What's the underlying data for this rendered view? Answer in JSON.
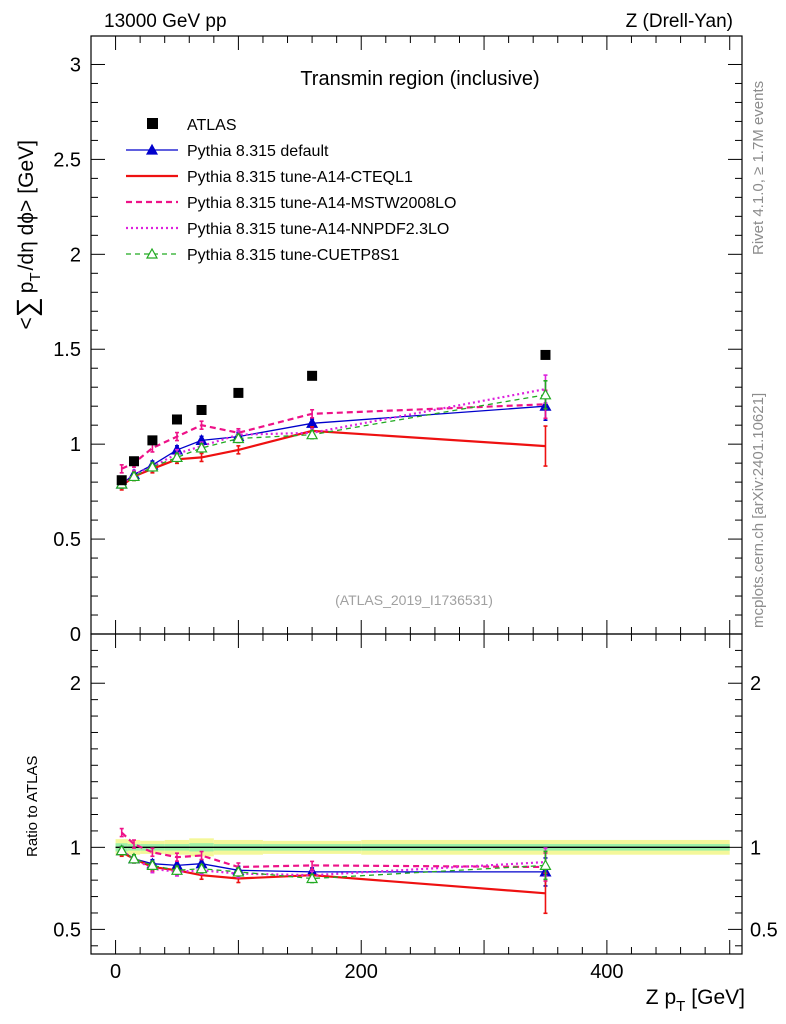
{
  "header": {
    "left": "13000 GeV pp",
    "right": "Z (Drell-Yan)"
  },
  "side_labels": {
    "rivet": "Rivet 4.1.0, ≥ 1.7M events",
    "site": "mcplots.cern.ch [arXiv:2401.10621]"
  },
  "colors": {
    "atlas": "#000000",
    "default": "#0000cc",
    "cteql1": "#ee1111",
    "mstw": "#ee1188",
    "nnpdf": "#dd22dd",
    "cuetp": "#22aa22",
    "band_yellow": "#f4f79a",
    "band_green": "#9cf0a8"
  },
  "chart_data": [
    {
      "type": "line",
      "title": "Transmin region (inclusive)",
      "watermark": "(ATLAS_2019_I1736531)",
      "ylabel_parts": {
        "open": "<",
        "sum": "∑",
        "p": "p",
        "sub": "T",
        "rest": "/dη dϕ>",
        "unit": "[GeV]"
      },
      "xlim": [
        -20,
        510
      ],
      "ylim": [
        0,
        3.15
      ],
      "yticks": [
        {
          "v": 0,
          "label": "0"
        },
        {
          "v": 0.5,
          "label": "0.5"
        },
        {
          "v": 1,
          "label": "1"
        },
        {
          "v": 1.5,
          "label": "1.5"
        },
        {
          "v": 2,
          "label": "2"
        },
        {
          "v": 2.5,
          "label": "2.5"
        },
        {
          "v": 3,
          "label": "3"
        }
      ],
      "x": [
        5,
        15,
        30,
        50,
        70,
        100,
        160,
        350
      ],
      "series": [
        {
          "name": "ATLAS",
          "key": "atlas",
          "style": "data",
          "values": [
            0.81,
            0.91,
            1.02,
            1.13,
            1.18,
            1.27,
            1.36,
            1.47
          ]
        },
        {
          "name": "Pythia 8.315 default",
          "key": "default",
          "style": "solid-thin",
          "marker": "triangle-filled",
          "values": [
            0.79,
            0.84,
            0.89,
            0.97,
            1.02,
            1.04,
            1.11,
            1.2
          ]
        },
        {
          "name": "Pythia 8.315 tune-A14-CTEQL1",
          "key": "cteql1",
          "style": "solid-thick",
          "marker": "none",
          "values": [
            0.78,
            0.83,
            0.87,
            0.92,
            0.93,
            0.97,
            1.07,
            0.99
          ]
        },
        {
          "name": "Pythia 8.315 tune-A14-MSTW2008LO",
          "key": "mstw",
          "style": "dashed",
          "marker": "none",
          "values": [
            0.87,
            0.9,
            0.98,
            1.04,
            1.1,
            1.06,
            1.16,
            1.21
          ]
        },
        {
          "name": "Pythia 8.315 tune-A14-NNPDF2.3LO",
          "key": "nnpdf",
          "style": "dotted",
          "marker": "none",
          "values": [
            0.79,
            0.84,
            0.88,
            0.95,
            0.99,
            1.05,
            1.06,
            1.29
          ]
        },
        {
          "name": "Pythia 8.315 tune-CUETP8S1",
          "key": "cuetp",
          "style": "dashed-thin",
          "marker": "triangle-open",
          "values": [
            0.79,
            0.83,
            0.88,
            0.93,
            0.98,
            1.03,
            1.05,
            1.26
          ]
        }
      ]
    },
    {
      "type": "line",
      "ylabel": "Ratio to ATLAS",
      "xlabel_parts": {
        "main": "Z p",
        "sub": "T",
        "unit": "[GeV]"
      },
      "xlim": [
        -20,
        510
      ],
      "ylim": [
        0.35,
        2.3
      ],
      "xticks": [
        {
          "v": 0,
          "label": "0"
        },
        {
          "v": 200,
          "label": "200"
        },
        {
          "v": 400,
          "label": "400"
        }
      ],
      "yticks": [
        {
          "v": 0.5,
          "label": "0.5"
        },
        {
          "v": 1,
          "label": "1"
        },
        {
          "v": 2,
          "label": "2"
        }
      ],
      "x": [
        5,
        15,
        30,
        50,
        70,
        100,
        160,
        350
      ],
      "series": [
        {
          "key": "default",
          "values": [
            0.98,
            0.93,
            0.9,
            0.89,
            0.9,
            0.86,
            0.85,
            0.85
          ]
        },
        {
          "key": "cteql1",
          "values": [
            0.97,
            0.93,
            0.88,
            0.86,
            0.83,
            0.81,
            0.83,
            0.72
          ]
        },
        {
          "key": "mstw",
          "values": [
            1.09,
            1.02,
            0.97,
            0.94,
            0.95,
            0.88,
            0.89,
            0.88
          ]
        },
        {
          "key": "nnpdf",
          "values": [
            0.98,
            0.93,
            0.87,
            0.85,
            0.86,
            0.84,
            0.83,
            0.91
          ]
        },
        {
          "key": "cuetp",
          "values": [
            0.98,
            0.93,
            0.89,
            0.86,
            0.87,
            0.85,
            0.81,
            0.89
          ]
        }
      ]
    }
  ]
}
